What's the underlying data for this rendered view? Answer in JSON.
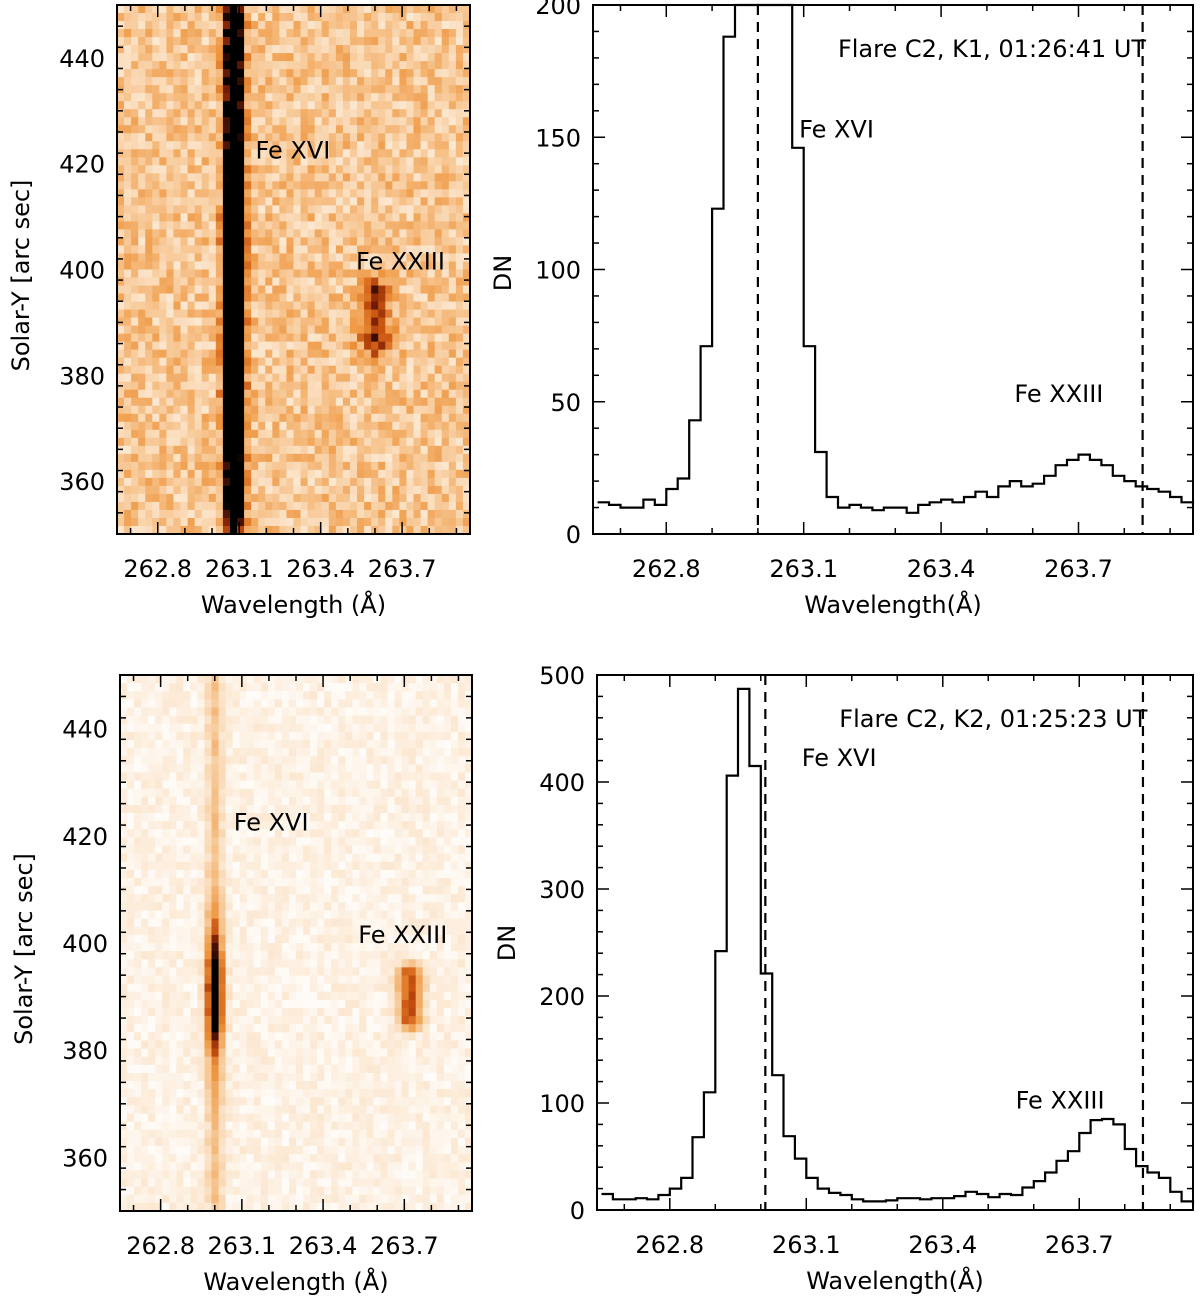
{
  "panels": [
    {
      "type": "heatmap",
      "xlabel": "Wavelength (Å)",
      "ylabel": "Solar-Y [arc sec]",
      "xlim": [
        262.65,
        263.95
      ],
      "ylim": [
        350,
        450
      ],
      "x_ticks": [
        262.8,
        263.1,
        263.4,
        263.7
      ],
      "x_tick_labels": [
        "262.8",
        "263.1",
        "263.4",
        "263.7"
      ],
      "y_ticks": [
        360,
        380,
        400,
        420,
        440
      ],
      "y_tick_labels": [
        "360",
        "380",
        "400",
        "420",
        "440"
      ],
      "colormap": [
        "#ffffff",
        "#fbe3c8",
        "#f6c189",
        "#ee963f",
        "#c9520f",
        "#7a1f05",
        "#000000"
      ],
      "lines": [
        {
          "label": "Fe XVI",
          "center": 263.08,
          "y_center": 392,
          "peak_y": 392,
          "y_extent": [
            352,
            448
          ],
          "width": 0.034,
          "strength": 1.2,
          "core_strength": 0.7,
          "halo_height": 25
        },
        {
          "label": "Fe XXIII",
          "center": 263.6,
          "y_center": 391,
          "y_extent": [
            386,
            396
          ],
          "width": 0.055,
          "strength": 0.48
        }
      ],
      "background": 0.3,
      "noise": 0.16,
      "annotations": [
        {
          "text": "Fe XVI",
          "x": 263.16,
          "y": 421
        },
        {
          "text": "Fe XXIII",
          "x": 263.53,
          "y": 400
        }
      ]
    },
    {
      "type": "line",
      "title": "Flare C2, K1, 01:26:41 UT",
      "xlabel": "Wavelength(Å)",
      "ylabel": "DN",
      "xlim": [
        262.64,
        263.95
      ],
      "ylim": [
        0,
        200
      ],
      "x_ticks": [
        262.8,
        263.1,
        263.4,
        263.7
      ],
      "x_tick_labels": [
        "262.8",
        "263.1",
        "263.4",
        "263.7"
      ],
      "y_ticks": [
        0,
        50,
        100,
        150,
        200
      ],
      "y_tick_labels": [
        "0",
        "50",
        "100",
        "150",
        "200"
      ],
      "step_x": [
        262.65,
        262.675,
        262.7,
        262.725,
        262.75,
        262.775,
        262.8,
        262.825,
        262.85,
        262.875,
        262.9,
        262.925,
        262.95,
        262.975,
        263.0,
        263.025,
        263.05,
        263.075,
        263.1,
        263.125,
        263.15,
        263.175,
        263.2,
        263.225,
        263.25,
        263.275,
        263.3,
        263.325,
        263.35,
        263.375,
        263.4,
        263.425,
        263.45,
        263.475,
        263.5,
        263.525,
        263.55,
        263.575,
        263.6,
        263.625,
        263.65,
        263.675,
        263.7,
        263.725,
        263.75,
        263.775,
        263.8,
        263.825,
        263.85,
        263.875,
        263.9,
        263.925,
        263.95
      ],
      "values": [
        12,
        11,
        10,
        10,
        13,
        11,
        17,
        21,
        43,
        71,
        123,
        188,
        200,
        200,
        200,
        200,
        200,
        146,
        71,
        31,
        14,
        10,
        11,
        10,
        9,
        10,
        10,
        8,
        11,
        12,
        13,
        12,
        14,
        16,
        14,
        18,
        20,
        18,
        19,
        22,
        26,
        28,
        30,
        28,
        26,
        22,
        20,
        18,
        17,
        16,
        14,
        12,
        11
      ],
      "dashed_lines": [
        263.0,
        263.84
      ],
      "annotations": [
        {
          "text": "Fe XVI",
          "x": 263.09,
          "y": 150
        },
        {
          "text": "Fe XXIII",
          "x": 263.56,
          "y": 50
        }
      ]
    },
    {
      "type": "heatmap",
      "xlabel": "Wavelength (Å)",
      "ylabel": "Solar-Y [arc sec]",
      "xlim": [
        262.65,
        263.95
      ],
      "ylim": [
        350,
        450
      ],
      "x_ticks": [
        262.8,
        263.1,
        263.4,
        263.7
      ],
      "x_tick_labels": [
        "262.8",
        "263.1",
        "263.4",
        "263.7"
      ],
      "y_ticks": [
        360,
        380,
        400,
        420,
        440
      ],
      "y_tick_labels": [
        "360",
        "380",
        "400",
        "420",
        "440"
      ],
      "colormap": [
        "#ffffff",
        "#fbe3c8",
        "#f6c189",
        "#ee963f",
        "#c9520f",
        "#7a1f05",
        "#000000"
      ],
      "lines": [
        {
          "label": "Fe XVI",
          "center": 263.0,
          "y_center": 391,
          "peak_y": 391,
          "y_extent": [
            352,
            448
          ],
          "width": 0.03,
          "strength": 0.24,
          "core_strength": 0.9,
          "halo_height": 12
        },
        {
          "label": "Fe XXIII",
          "center": 263.72,
          "y_center": 390,
          "y_extent": [
            386,
            394
          ],
          "width": 0.045,
          "strength": 0.6
        }
      ],
      "background": 0.08,
      "noise": 0.06,
      "annotations": [
        {
          "text": "Fe XVI",
          "x": 263.07,
          "y": 421
        },
        {
          "text": "Fe XXIII",
          "x": 263.53,
          "y": 400
        }
      ]
    },
    {
      "type": "line",
      "title": "Flare C2, K2, 01:25:23 UT",
      "xlabel": "Wavelength(Å)",
      "ylabel": "DN",
      "xlim": [
        262.64,
        263.95
      ],
      "ylim": [
        0,
        500
      ],
      "x_ticks": [
        262.8,
        263.1,
        263.4,
        263.7
      ],
      "x_tick_labels": [
        "262.8",
        "263.1",
        "263.4",
        "263.7"
      ],
      "y_ticks": [
        0,
        100,
        200,
        300,
        400,
        500
      ],
      "y_tick_labels": [
        "0",
        "100",
        "200",
        "300",
        "400",
        "500"
      ],
      "step_x": [
        262.65,
        262.675,
        262.7,
        262.725,
        262.75,
        262.775,
        262.8,
        262.825,
        262.85,
        262.875,
        262.9,
        262.925,
        262.95,
        262.975,
        263.0,
        263.025,
        263.05,
        263.075,
        263.1,
        263.125,
        263.15,
        263.175,
        263.2,
        263.225,
        263.25,
        263.275,
        263.3,
        263.325,
        263.35,
        263.375,
        263.4,
        263.425,
        263.45,
        263.475,
        263.5,
        263.525,
        263.55,
        263.575,
        263.6,
        263.625,
        263.65,
        263.675,
        263.7,
        263.725,
        263.75,
        263.775,
        263.8,
        263.825,
        263.85,
        263.875,
        263.9,
        263.925,
        263.95
      ],
      "values": [
        15,
        10,
        10,
        11,
        10,
        14,
        20,
        30,
        68,
        110,
        242,
        406,
        487,
        415,
        221,
        126,
        69,
        48,
        30,
        20,
        16,
        14,
        10,
        8,
        8,
        9,
        11,
        11,
        10,
        11,
        11,
        13,
        17,
        15,
        12,
        15,
        14,
        21,
        27,
        35,
        46,
        55,
        72,
        84,
        85,
        80,
        57,
        41,
        35,
        30,
        17,
        8,
        5
      ],
      "dashed_lines": [
        263.01,
        263.84
      ],
      "annotations": [
        {
          "text": "Fe XVI",
          "x": 263.09,
          "y": 415
        },
        {
          "text": "Fe XXIII",
          "x": 263.56,
          "y": 95
        }
      ]
    }
  ]
}
